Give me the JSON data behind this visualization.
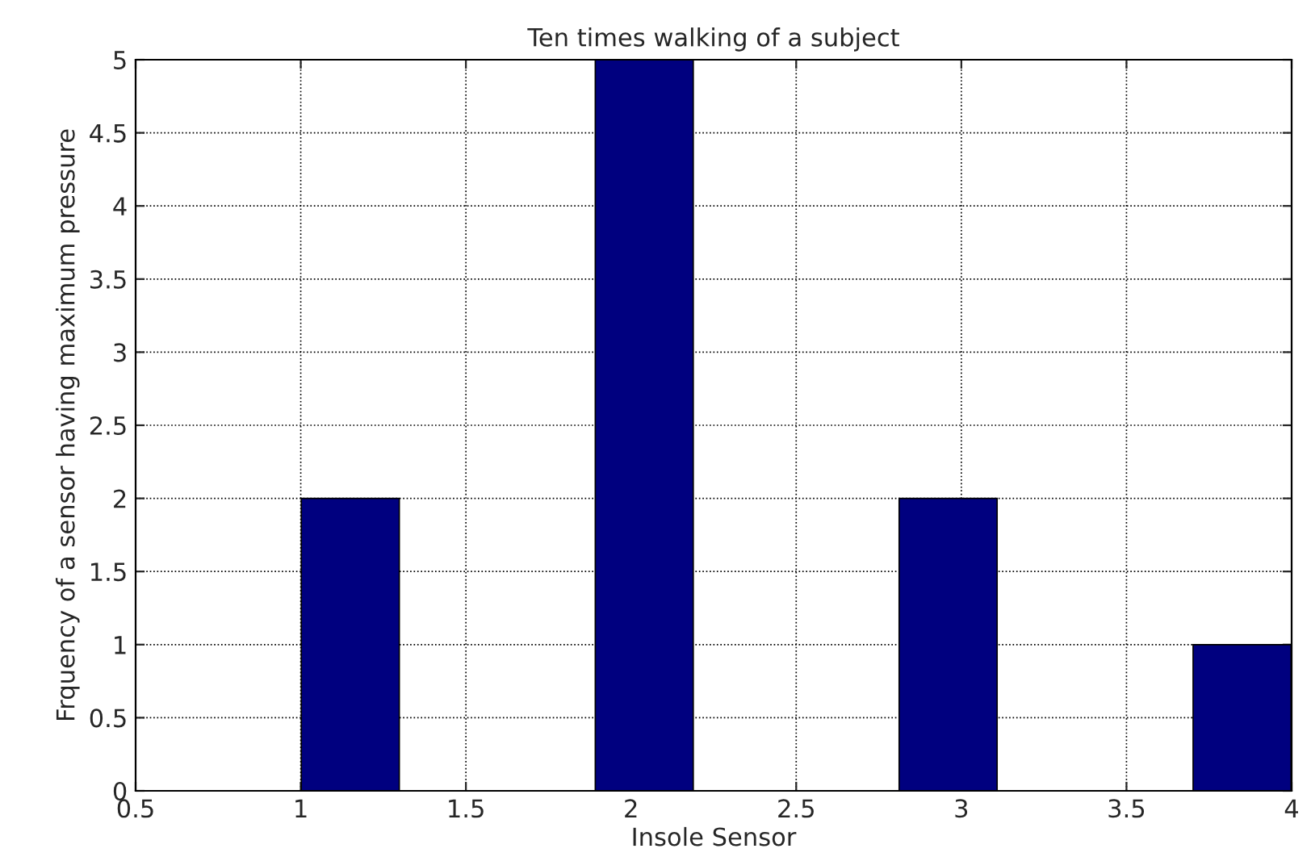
{
  "chart_data": {
    "type": "bar",
    "title": "Ten times walking of a subject",
    "xlabel": "Insole Sensor",
    "ylabel": "Frquency of a sensor having maximum pressure",
    "x": [
      1.15,
      2.04,
      2.96,
      3.85
    ],
    "series": [
      {
        "color": "#00007f",
        "values": [
          2,
          5,
          2,
          1
        ]
      }
    ],
    "xlim": [
      0.5,
      4
    ],
    "xticks": [
      0.5,
      1,
      1.5,
      2,
      2.5,
      3,
      3.5,
      4
    ],
    "ylim": [
      0,
      5
    ],
    "yticks": [
      0,
      0.5,
      1,
      1.5,
      2,
      2.5,
      3,
      3.5,
      4,
      4.5,
      5
    ],
    "grid": true
  }
}
